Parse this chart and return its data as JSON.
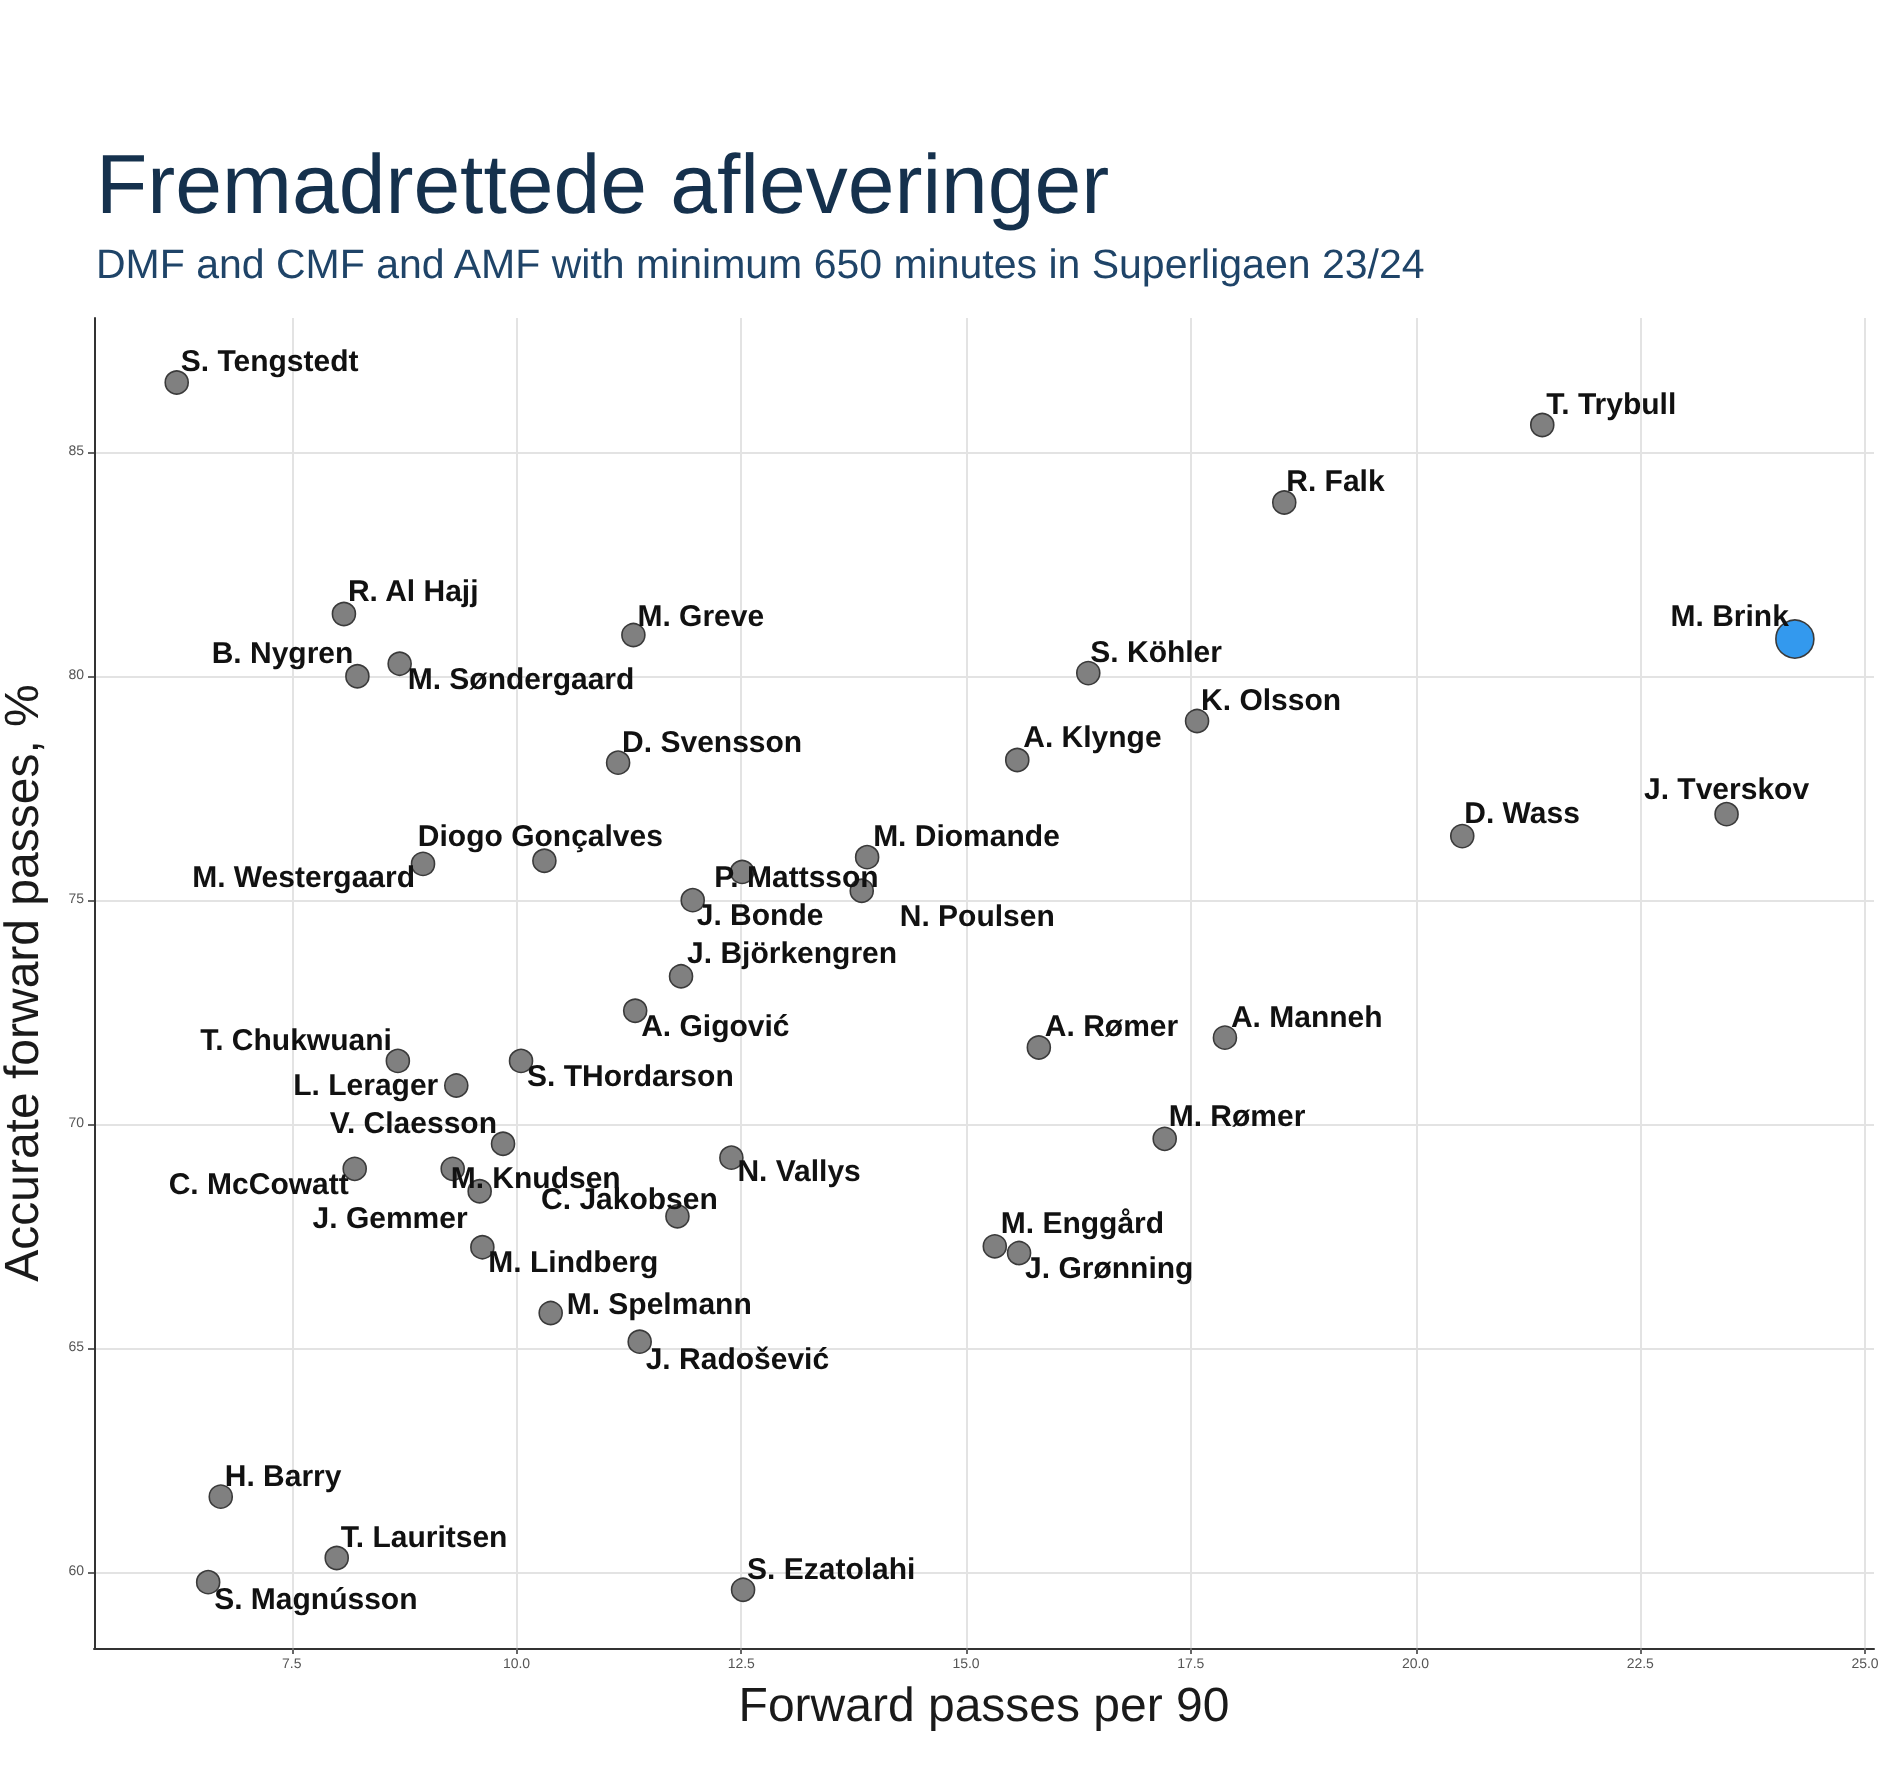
{
  "chart_data": {
    "type": "scatter",
    "title": "Fremadrettede afleveringer",
    "subtitle": "DMF and CMF and AMF with minimum 650 minutes in Superligaen 23/24",
    "xlabel": "Forward passes per 90",
    "ylabel": "Accurate forward passes, %",
    "xlim": [
      5.3,
      25.1
    ],
    "xticks": [
      7.5,
      {
        "value": 10,
        "label": "10.0"
      },
      12.5,
      {
        "value": 15,
        "label": "15.0"
      },
      17.5,
      {
        "value": 20,
        "label": "20.0"
      },
      22.5,
      {
        "value": 25,
        "label": "25.0"
      }
    ],
    "ylim": [
      58.3,
      88.0
    ],
    "yticks": [
      60,
      65,
      70,
      75,
      80,
      85
    ],
    "grid": true,
    "marker": "circle",
    "series": [
      {
        "color": "#808080",
        "x": [
          6.22,
          21.41,
          18.54,
          8.08,
          11.3,
          8.23,
          8.7,
          16.36,
          17.57,
          11.13,
          15.57,
          20.52,
          23.46,
          10.31,
          8.96,
          13.9,
          12.51,
          13.84,
          11.96,
          11.83,
          11.32,
          8.68,
          10.05,
          9.33,
          15.81,
          17.88,
          9.85,
          9.59,
          8.2,
          9.29,
          12.39,
          17.21,
          11.79,
          15.32,
          15.59,
          9.62,
          10.38,
          11.37,
          6.71,
          8.0,
          6.57,
          12.52
        ],
        "values": [
          86.56,
          85.61,
          83.88,
          81.39,
          80.92,
          80.0,
          80.28,
          80.07,
          79.0,
          78.07,
          78.13,
          76.43,
          76.92,
          75.88,
          75.81,
          75.96,
          75.63,
          75.21,
          75.0,
          73.3,
          72.53,
          71.41,
          71.41,
          70.86,
          71.71,
          71.93,
          69.56,
          68.5,
          69.0,
          69.0,
          69.25,
          69.67,
          67.94,
          67.27,
          67.12,
          67.25,
          65.78,
          65.14,
          61.68,
          60.31,
          59.77,
          59.6
        ]
      },
      {
        "color": "#3399ee",
        "x": [
          24.22
        ],
        "values": [
          80.83
        ]
      }
    ],
    "annotations": [
      {
        "text": "S. Tengstedt",
        "x": 6.22,
        "y": 86.56
      },
      {
        "text": "T. Trybull",
        "x": 21.41,
        "y": 85.61
      },
      {
        "text": "R. Falk",
        "x": 18.54,
        "y": 83.88
      },
      {
        "text": "R. Al Hajj",
        "x": 8.08,
        "y": 81.39
      },
      {
        "text": "M. Greve",
        "x": 11.3,
        "y": 80.92
      },
      {
        "text": "B. Nygren",
        "x": 8.23,
        "y": 80.0
      },
      {
        "text": "M. Søndergaard",
        "x": 8.7,
        "y": 80.28
      },
      {
        "text": "M. Brink",
        "x": 24.22,
        "y": 80.83
      },
      {
        "text": "S. Köhler",
        "x": 16.36,
        "y": 80.07
      },
      {
        "text": "K. Olsson",
        "x": 17.57,
        "y": 79.0
      },
      {
        "text": "D. Svensson",
        "x": 11.13,
        "y": 78.07
      },
      {
        "text": "A. Klynge",
        "x": 15.57,
        "y": 78.13
      },
      {
        "text": "D. Wass",
        "x": 20.52,
        "y": 76.43
      },
      {
        "text": "J. Tverskov",
        "x": 23.46,
        "y": 76.92
      },
      {
        "text": "Diogo Gonçalves",
        "x": 10.31,
        "y": 75.88
      },
      {
        "text": "M. Westergaard",
        "x": 8.96,
        "y": 75.81
      },
      {
        "text": "M. Diomande",
        "x": 13.9,
        "y": 75.96
      },
      {
        "text": "P. Mattsson",
        "x": 12.51,
        "y": 75.63
      },
      {
        "text": "N. Poulsen",
        "x": 13.84,
        "y": 75.21
      },
      {
        "text": "J. Bonde",
        "x": 11.96,
        "y": 75.0
      },
      {
        "text": "J. Björkengren",
        "x": 11.83,
        "y": 73.3
      },
      {
        "text": "A. Gigović",
        "x": 11.32,
        "y": 72.53
      },
      {
        "text": "T. Chukwuani",
        "x": 8.68,
        "y": 71.41
      },
      {
        "text": "S. THordarson",
        "x": 10.05,
        "y": 71.41
      },
      {
        "text": "L. Lerager",
        "x": 9.33,
        "y": 70.86
      },
      {
        "text": "A. Rømer",
        "x": 15.81,
        "y": 71.71
      },
      {
        "text": "A. Manneh",
        "x": 17.88,
        "y": 71.93
      },
      {
        "text": "V. Claesson",
        "x": 9.85,
        "y": 69.56
      },
      {
        "text": "J. Gemmer",
        "x": 9.59,
        "y": 68.5
      },
      {
        "text": "C. McCowatt",
        "x": 8.2,
        "y": 69.0
      },
      {
        "text": "M. Knudsen",
        "x": 9.29,
        "y": 69.0
      },
      {
        "text": "N. Vallys",
        "x": 12.39,
        "y": 69.25
      },
      {
        "text": "M. Rømer",
        "x": 17.21,
        "y": 69.67
      },
      {
        "text": "C. Jakobsen",
        "x": 11.79,
        "y": 67.94
      },
      {
        "text": "M. Enggård",
        "x": 15.32,
        "y": 67.27
      },
      {
        "text": "J. Grønning",
        "x": 15.59,
        "y": 67.12
      },
      {
        "text": "M. Lindberg",
        "x": 9.62,
        "y": 67.25
      },
      {
        "text": "M. Spelmann",
        "x": 10.38,
        "y": 65.78
      },
      {
        "text": "J. Radošević",
        "x": 11.37,
        "y": 65.14
      },
      {
        "text": "H. Barry",
        "x": 6.71,
        "y": 61.68
      },
      {
        "text": "T. Lauritsen",
        "x": 8.0,
        "y": 60.31
      },
      {
        "text": "S. Magnússon",
        "x": 6.57,
        "y": 59.77
      },
      {
        "text": "S. Ezatolahi",
        "x": 12.52,
        "y": 59.6
      }
    ]
  }
}
